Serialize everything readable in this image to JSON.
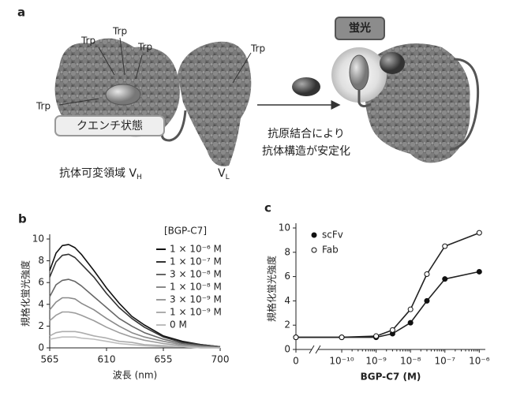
{
  "panel_a": {
    "label": "a",
    "trp": [
      "Trp",
      "Trp",
      "Trp",
      "Trp",
      "Trp"
    ],
    "quench": "クエンチ状態",
    "vh": "抗体可変領域 V",
    "vh_sub": "H",
    "vl": "V",
    "vl_sub": "L",
    "fluorescence": "蛍光",
    "caption": [
      "抗原結合により",
      "抗体構造が安定化"
    ]
  },
  "chart_data": [
    {
      "type": "line",
      "panel_label": "b",
      "xlabel": "波長 (nm)",
      "ylabel": "規格化蛍光強度",
      "x": [
        565,
        570,
        575,
        580,
        585,
        590,
        600,
        610,
        620,
        630,
        640,
        655,
        670,
        685,
        700
      ],
      "xlim": [
        565,
        700
      ],
      "xticks": [
        565,
        610,
        655,
        700
      ],
      "ylim": [
        0,
        10
      ],
      "yticks": [
        0,
        2,
        4,
        6,
        8,
        10
      ],
      "grid": false,
      "legend": "upper right",
      "legend_title": "[BGP-C7]",
      "series": [
        {
          "name": "1 × 10⁻⁶ M",
          "color": "#111111",
          "values": [
            7.1,
            8.7,
            9.4,
            9.5,
            9.2,
            8.6,
            7.1,
            5.5,
            4.1,
            2.9,
            2.1,
            1.1,
            0.6,
            0.3,
            0.1
          ]
        },
        {
          "name": "1 × 10⁻⁷ M",
          "color": "#333333",
          "values": [
            6.5,
            7.9,
            8.5,
            8.6,
            8.3,
            7.7,
            6.5,
            5.0,
            3.7,
            2.7,
            1.9,
            1.0,
            0.5,
            0.3,
            0.1
          ]
        },
        {
          "name": "3 × 10⁻⁸ M",
          "color": "#666666",
          "values": [
            4.7,
            5.8,
            6.2,
            6.3,
            6.1,
            5.7,
            4.7,
            3.7,
            2.7,
            2.0,
            1.4,
            0.8,
            0.4,
            0.2,
            0.1
          ]
        },
        {
          "name": "1 × 10⁻⁸ M",
          "color": "#8a8a8a",
          "values": [
            3.5,
            4.2,
            4.6,
            4.6,
            4.5,
            4.1,
            3.5,
            2.7,
            2.0,
            1.4,
            1.0,
            0.6,
            0.3,
            0.1,
            0.0
          ]
        },
        {
          "name": "3 × 10⁻⁹ M",
          "color": "#9c9c9c",
          "values": [
            2.5,
            3.0,
            3.3,
            3.3,
            3.2,
            3.0,
            2.5,
            1.9,
            1.4,
            1.0,
            0.7,
            0.4,
            0.2,
            0.1,
            0.0
          ]
        },
        {
          "name": "1 × 10⁻⁹ M",
          "color": "#adadad",
          "values": [
            1.1,
            1.4,
            1.5,
            1.5,
            1.5,
            1.4,
            1.1,
            0.9,
            0.6,
            0.5,
            0.3,
            0.2,
            0.1,
            0.0,
            0.0
          ]
        },
        {
          "name": "0 M",
          "color": "#bdbdbd",
          "values": [
            0.8,
            0.9,
            1.0,
            1.0,
            1.0,
            0.9,
            0.8,
            0.6,
            0.4,
            0.3,
            0.2,
            0.1,
            0.1,
            0.0,
            0.0
          ]
        }
      ]
    },
    {
      "type": "line",
      "panel_label": "c",
      "xlabel": "BGP-C7 (M)",
      "ylabel": "規格化蛍光強度",
      "x": [
        0,
        1e-10,
        1e-09,
        3e-09,
        1e-08,
        3e-08,
        1e-07,
        1e-06
      ],
      "xlog": true,
      "xlim": [
        4e-11,
        1.5e-06
      ],
      "xticks": [
        0,
        {
          "value": 1e-10,
          "label": "10⁻¹⁰"
        },
        {
          "value": 1e-09,
          "label": "10⁻⁹"
        },
        {
          "value": 1e-08,
          "label": "10⁻⁸"
        },
        {
          "value": 1e-07,
          "label": "10⁻⁷"
        },
        {
          "value": 1e-06,
          "label": "10⁻⁶"
        }
      ],
      "ylim": [
        0,
        10
      ],
      "yticks": [
        0,
        2,
        4,
        6,
        8,
        10
      ],
      "grid": false,
      "legend": "upper left",
      "series": [
        {
          "name": "scFv",
          "color": "#222222",
          "marker_fill": "#111111",
          "values": [
            1.0,
            1.0,
            1.0,
            1.3,
            2.2,
            4.0,
            5.8,
            6.4
          ]
        },
        {
          "name": "Fab",
          "color": "#222222",
          "marker_fill": "#ffffff",
          "values": [
            1.0,
            1.0,
            1.1,
            1.6,
            3.3,
            6.2,
            8.5,
            9.6
          ]
        }
      ]
    }
  ]
}
